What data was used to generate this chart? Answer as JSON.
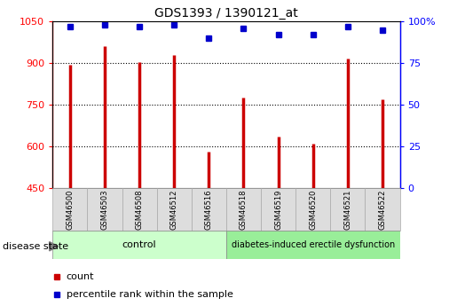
{
  "title": "GDS1393 / 1390121_at",
  "samples": [
    "GSM46500",
    "GSM46503",
    "GSM46508",
    "GSM46512",
    "GSM46516",
    "GSM46518",
    "GSM46519",
    "GSM46520",
    "GSM46521",
    "GSM46522"
  ],
  "counts": [
    895,
    960,
    905,
    930,
    580,
    775,
    635,
    610,
    915,
    770
  ],
  "percentiles": [
    97,
    98,
    97,
    98,
    90,
    96,
    92,
    92,
    97,
    95
  ],
  "ylim_left": [
    450,
    1050
  ],
  "ylim_right": [
    0,
    100
  ],
  "yticks_left": [
    450,
    600,
    750,
    900,
    1050
  ],
  "yticks_right": [
    0,
    25,
    50,
    75,
    100
  ],
  "bar_color": "#cc0000",
  "dot_color": "#0000cc",
  "group1_label": "control",
  "group2_label": "diabetes-induced erectile dysfunction",
  "group1_color": "#ccffcc",
  "group2_color": "#99ee99",
  "label_row_color": "#dddddd",
  "legend_count_label": "count",
  "legend_pct_label": "percentile rank within the sample",
  "disease_state_label": "disease state",
  "title_fontsize": 10,
  "tick_fontsize": 8,
  "bar_linewidth": 2.5
}
